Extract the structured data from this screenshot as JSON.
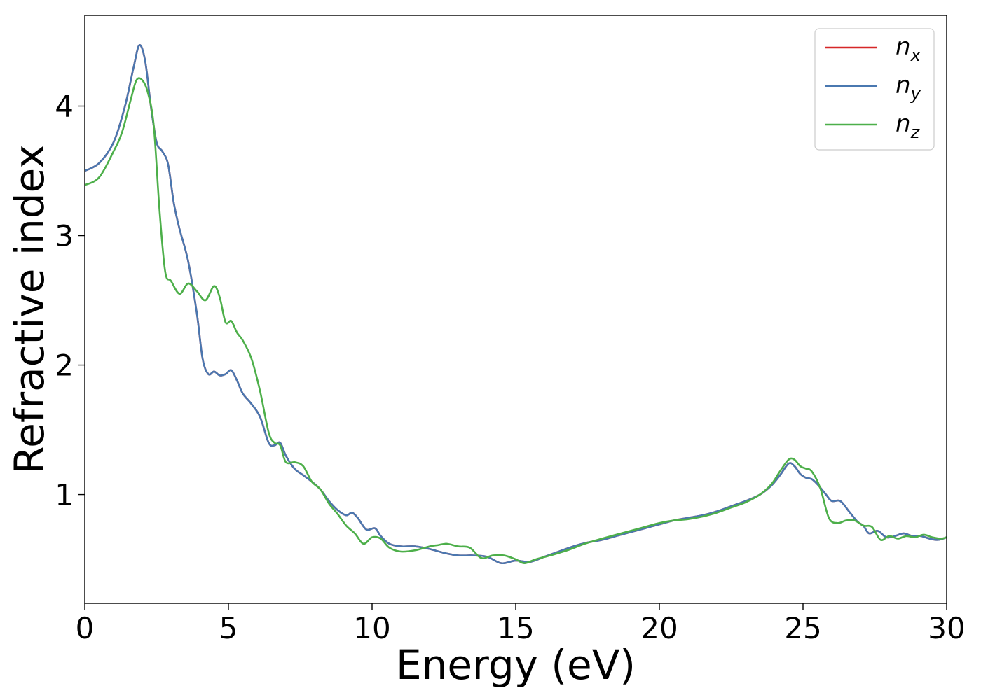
{
  "chart_data": {
    "type": "line",
    "title": "",
    "xlabel": "Energy (eV)",
    "ylabel": "Refractive index",
    "xlim": [
      0,
      30
    ],
    "ylim": [
      0.16,
      4.7
    ],
    "xticks": [
      0,
      5,
      10,
      15,
      20,
      25,
      30
    ],
    "yticks": [
      1,
      2,
      3,
      4
    ],
    "grid": false,
    "legend_position": "top-right",
    "series": [
      {
        "name": "n",
        "sub": "x",
        "color": "#d62728",
        "x": [
          0,
          0.5,
          1.0,
          1.4,
          1.7,
          1.9,
          2.1,
          2.3,
          2.5,
          2.7,
          2.9,
          3.1,
          3.3,
          3.6,
          3.9,
          4.1,
          4.3,
          4.5,
          4.7,
          4.9,
          5.1,
          5.3,
          5.5,
          5.8,
          6.1,
          6.4,
          6.6,
          6.8,
          7.0,
          7.3,
          7.6,
          7.9,
          8.2,
          8.5,
          8.8,
          9.1,
          9.3,
          9.5,
          9.8,
          10.1,
          10.3,
          10.6,
          11.0,
          11.5,
          12.0,
          12.5,
          13.0,
          13.5,
          14.0,
          14.5,
          15.0,
          15.5,
          16.0,
          16.5,
          17.0,
          17.5,
          18.0,
          18.5,
          19.0,
          19.5,
          20.0,
          20.5,
          21.0,
          21.5,
          22.0,
          22.5,
          23.0,
          23.5,
          23.9,
          24.2,
          24.5,
          24.7,
          24.9,
          25.1,
          25.3,
          25.5,
          25.8,
          26.0,
          26.3,
          26.6,
          26.9,
          27.1,
          27.3,
          27.6,
          27.9,
          28.2,
          28.5,
          28.8,
          29.1,
          29.4,
          29.7,
          30.0
        ],
        "y": [
          3.5,
          3.56,
          3.72,
          4.0,
          4.3,
          4.47,
          4.35,
          4.0,
          3.72,
          3.65,
          3.55,
          3.25,
          3.05,
          2.8,
          2.4,
          2.05,
          1.93,
          1.95,
          1.92,
          1.93,
          1.96,
          1.88,
          1.78,
          1.7,
          1.6,
          1.4,
          1.38,
          1.4,
          1.3,
          1.2,
          1.15,
          1.1,
          1.04,
          0.95,
          0.88,
          0.84,
          0.86,
          0.82,
          0.73,
          0.74,
          0.68,
          0.62,
          0.6,
          0.6,
          0.58,
          0.55,
          0.53,
          0.53,
          0.52,
          0.47,
          0.49,
          0.48,
          0.52,
          0.56,
          0.6,
          0.63,
          0.65,
          0.68,
          0.71,
          0.74,
          0.77,
          0.8,
          0.82,
          0.84,
          0.87,
          0.91,
          0.95,
          1.0,
          1.07,
          1.15,
          1.24,
          1.22,
          1.16,
          1.13,
          1.12,
          1.08,
          1.0,
          0.95,
          0.95,
          0.87,
          0.79,
          0.76,
          0.7,
          0.72,
          0.67,
          0.68,
          0.7,
          0.68,
          0.68,
          0.66,
          0.65,
          0.67
        ]
      },
      {
        "name": "n",
        "sub": "y",
        "color": "#4a78b0",
        "x": [
          0,
          0.5,
          1.0,
          1.4,
          1.7,
          1.9,
          2.1,
          2.3,
          2.5,
          2.7,
          2.9,
          3.1,
          3.3,
          3.6,
          3.9,
          4.1,
          4.3,
          4.5,
          4.7,
          4.9,
          5.1,
          5.3,
          5.5,
          5.8,
          6.1,
          6.4,
          6.6,
          6.8,
          7.0,
          7.3,
          7.6,
          7.9,
          8.2,
          8.5,
          8.8,
          9.1,
          9.3,
          9.5,
          9.8,
          10.1,
          10.3,
          10.6,
          11.0,
          11.5,
          12.0,
          12.5,
          13.0,
          13.5,
          14.0,
          14.5,
          15.0,
          15.5,
          16.0,
          16.5,
          17.0,
          17.5,
          18.0,
          18.5,
          19.0,
          19.5,
          20.0,
          20.5,
          21.0,
          21.5,
          22.0,
          22.5,
          23.0,
          23.5,
          23.9,
          24.2,
          24.5,
          24.7,
          24.9,
          25.1,
          25.3,
          25.5,
          25.8,
          26.0,
          26.3,
          26.6,
          26.9,
          27.1,
          27.3,
          27.6,
          27.9,
          28.2,
          28.5,
          28.8,
          29.1,
          29.4,
          29.7,
          30.0
        ],
        "y": [
          3.5,
          3.56,
          3.72,
          4.0,
          4.3,
          4.47,
          4.35,
          4.0,
          3.72,
          3.65,
          3.55,
          3.25,
          3.05,
          2.8,
          2.4,
          2.05,
          1.93,
          1.95,
          1.92,
          1.93,
          1.96,
          1.88,
          1.78,
          1.7,
          1.6,
          1.4,
          1.38,
          1.4,
          1.3,
          1.2,
          1.15,
          1.1,
          1.04,
          0.95,
          0.88,
          0.84,
          0.86,
          0.82,
          0.73,
          0.74,
          0.68,
          0.62,
          0.6,
          0.6,
          0.58,
          0.55,
          0.53,
          0.53,
          0.52,
          0.47,
          0.49,
          0.48,
          0.52,
          0.56,
          0.6,
          0.63,
          0.65,
          0.68,
          0.71,
          0.74,
          0.77,
          0.8,
          0.82,
          0.84,
          0.87,
          0.91,
          0.95,
          1.0,
          1.07,
          1.15,
          1.24,
          1.22,
          1.16,
          1.13,
          1.12,
          1.08,
          1.0,
          0.95,
          0.95,
          0.87,
          0.79,
          0.76,
          0.7,
          0.72,
          0.67,
          0.68,
          0.7,
          0.68,
          0.68,
          0.66,
          0.65,
          0.67
        ]
      },
      {
        "name": "n",
        "sub": "z",
        "color": "#4daf4a",
        "x": [
          0,
          0.5,
          1.0,
          1.3,
          1.6,
          1.8,
          2.0,
          2.2,
          2.4,
          2.6,
          2.8,
          3.0,
          3.3,
          3.6,
          3.9,
          4.2,
          4.5,
          4.7,
          4.9,
          5.1,
          5.3,
          5.5,
          5.8,
          6.1,
          6.4,
          6.6,
          6.8,
          7.0,
          7.3,
          7.6,
          7.9,
          8.2,
          8.5,
          8.8,
          9.1,
          9.4,
          9.7,
          10.0,
          10.3,
          10.6,
          11.0,
          11.5,
          12.0,
          12.3,
          12.6,
          13.0,
          13.4,
          13.8,
          14.2,
          14.6,
          15.0,
          15.3,
          15.7,
          16.2,
          16.8,
          17.4,
          18.0,
          18.5,
          19.0,
          19.5,
          20.0,
          20.5,
          21.0,
          21.5,
          22.0,
          22.5,
          23.0,
          23.5,
          23.9,
          24.2,
          24.5,
          24.7,
          24.9,
          25.1,
          25.3,
          25.6,
          25.9,
          26.2,
          26.5,
          26.8,
          27.1,
          27.4,
          27.7,
          28.0,
          28.3,
          28.6,
          28.9,
          29.2,
          29.5,
          29.8,
          30.0
        ],
        "y": [
          3.39,
          3.45,
          3.65,
          3.8,
          4.05,
          4.2,
          4.2,
          4.1,
          3.85,
          3.2,
          2.72,
          2.65,
          2.55,
          2.63,
          2.57,
          2.5,
          2.61,
          2.52,
          2.33,
          2.34,
          2.25,
          2.19,
          2.05,
          1.8,
          1.48,
          1.4,
          1.38,
          1.25,
          1.25,
          1.22,
          1.1,
          1.04,
          0.93,
          0.85,
          0.76,
          0.7,
          0.62,
          0.67,
          0.66,
          0.59,
          0.56,
          0.57,
          0.6,
          0.61,
          0.62,
          0.6,
          0.59,
          0.51,
          0.53,
          0.53,
          0.5,
          0.47,
          0.5,
          0.53,
          0.57,
          0.62,
          0.66,
          0.69,
          0.72,
          0.75,
          0.78,
          0.8,
          0.81,
          0.83,
          0.86,
          0.9,
          0.94,
          1.0,
          1.08,
          1.18,
          1.27,
          1.27,
          1.22,
          1.2,
          1.18,
          1.05,
          0.82,
          0.78,
          0.8,
          0.8,
          0.76,
          0.75,
          0.65,
          0.68,
          0.66,
          0.68,
          0.67,
          0.69,
          0.67,
          0.66,
          0.67
        ]
      }
    ]
  }
}
